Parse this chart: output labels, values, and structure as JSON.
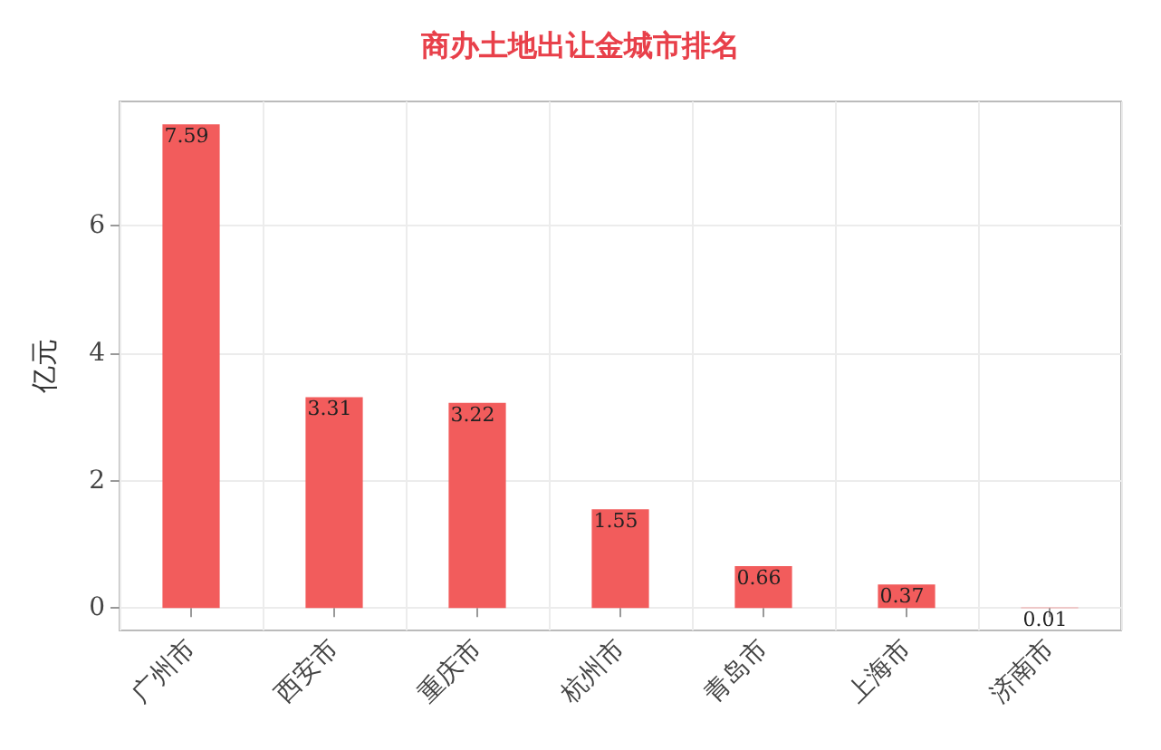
{
  "chart_data": {
    "type": "bar",
    "title": "商办土地出让金城市排名",
    "ylabel": "亿元",
    "categories": [
      "广州市",
      "西安市",
      "重庆市",
      "杭州市",
      "青岛市",
      "上海市",
      "济南市"
    ],
    "values": [
      7.59,
      3.31,
      3.22,
      1.55,
      0.66,
      0.37,
      0.01
    ],
    "color": "#f25c5c",
    "ylim": [
      -0.35,
      7.95
    ],
    "yticks": [
      0,
      2,
      4,
      6
    ],
    "grid": true,
    "data_labels": true
  }
}
